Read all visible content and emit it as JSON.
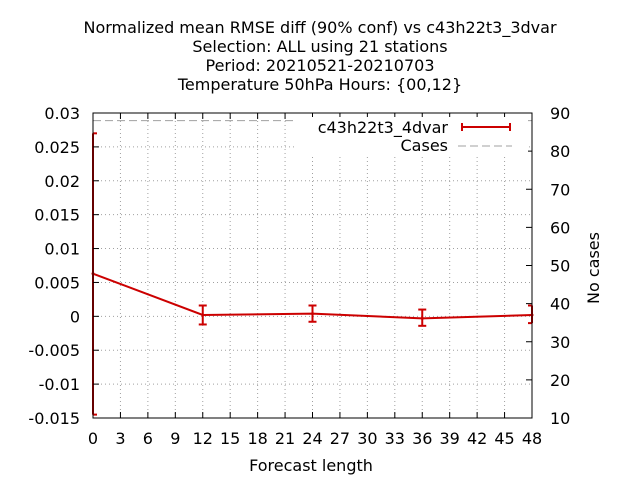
{
  "chart_data": {
    "type": "line",
    "title_lines": [
      "Normalized mean RMSE diff (90% conf) vs c43h22t3_3dvar",
      "Selection: ALL using    21 stations",
      "Period: 20210521-20210703",
      "Temperature 50hPa   Hours: {00,12}"
    ],
    "xlabel": "Forecast length",
    "ylabel": "",
    "y2label": "No cases",
    "xlim": [
      0,
      48
    ],
    "ylim": [
      -0.015,
      0.03
    ],
    "y2lim": [
      10,
      90
    ],
    "x_ticks": [
      0,
      3,
      6,
      9,
      12,
      15,
      18,
      21,
      24,
      27,
      30,
      33,
      36,
      39,
      42,
      45,
      48
    ],
    "y_ticks": [
      "0.03",
      "0.025",
      "0.02",
      "0.015",
      "0.01",
      "0.005",
      "0",
      "-0.005",
      "-0.01",
      "-0.015"
    ],
    "y2_ticks": [
      "90",
      "80",
      "70",
      "60",
      "50",
      "40",
      "30",
      "20",
      "10"
    ],
    "grid": true,
    "legend_position": "top-right",
    "series": [
      {
        "name": "c43h22t3_4dvar",
        "color": "#cc0000",
        "axis": "left",
        "x": [
          0,
          12,
          24,
          36,
          48
        ],
        "y": [
          0.0063,
          0.0002,
          0.0004,
          -0.0003,
          0.0002
        ],
        "err_low": [
          -0.0145,
          -0.0012,
          -0.0008,
          -0.0014,
          -0.001
        ],
        "err_high": [
          0.027,
          0.0016,
          0.0016,
          0.001,
          0.0016
        ]
      },
      {
        "name": "Cases",
        "color": "#a0a0a0",
        "axis": "right",
        "style": "dashed",
        "x": [
          0,
          48
        ],
        "y": [
          88,
          88
        ]
      }
    ]
  }
}
